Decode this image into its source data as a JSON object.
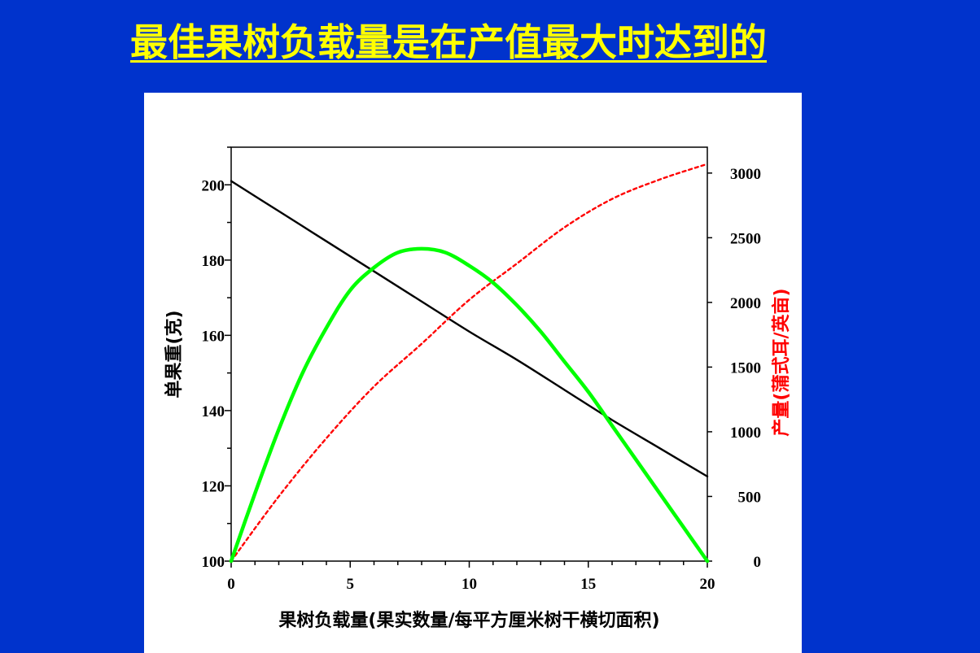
{
  "slide": {
    "title": "最佳果树负载量是在产值最大时达到的"
  },
  "chart_data": {
    "type": "line",
    "xlabel": "果树负载量(果实数量/每平方厘米树干横切面积)",
    "ylabel": "单果重(克)",
    "y2label": "产量(蒲式耳/英亩)",
    "xlim": [
      0,
      20
    ],
    "ylim": [
      100,
      210
    ],
    "y2lim": [
      0,
      3200
    ],
    "x_ticks": [
      0,
      5,
      10,
      15,
      20
    ],
    "y_ticks": [
      100,
      120,
      140,
      160,
      180,
      200
    ],
    "y2_ticks": [
      0,
      500,
      1000,
      1500,
      2000,
      2500,
      3000
    ],
    "grid": false,
    "colors": {
      "fruit_weight": "#000000",
      "yield": "#ff0000",
      "value": "#00ff00"
    },
    "series": [
      {
        "axis": "left",
        "style": "solid",
        "x": [
          0,
          2,
          4,
          6,
          8,
          10,
          12,
          14,
          16,
          18,
          20
        ],
        "values": [
          201,
          193,
          185,
          177,
          169,
          161,
          153.5,
          145.5,
          137.5,
          130,
          122.5
        ]
      },
      {
        "axis": "right",
        "style": "dotted",
        "x": [
          0,
          2,
          4,
          6,
          8,
          10,
          12,
          14,
          16,
          18,
          20
        ],
        "values": [
          0,
          500,
          950,
          1350,
          1680,
          2020,
          2300,
          2580,
          2800,
          2950,
          3070
        ]
      },
      {
        "axis": "left",
        "style": "solid-thick",
        "x": [
          0,
          1,
          2,
          3,
          4,
          5,
          6,
          7,
          8,
          9,
          10,
          11,
          12,
          13,
          14,
          15,
          16,
          17,
          18,
          19,
          20
        ],
        "values": [
          100,
          118,
          135,
          150,
          162,
          172,
          178,
          182,
          183,
          182,
          178.5,
          174,
          168,
          161,
          153,
          145,
          136,
          127,
          118,
          109,
          100
        ]
      }
    ]
  }
}
